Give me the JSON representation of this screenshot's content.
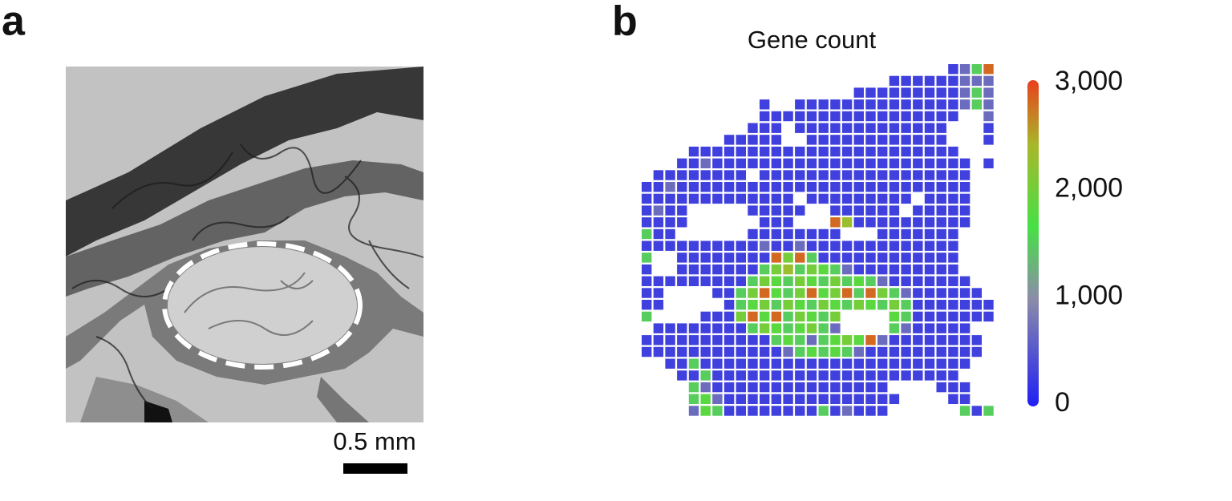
{
  "panel_a": {
    "label": "a",
    "scale_bar": "0.5 mm"
  },
  "chart_data": {
    "type": "spot-heatmap",
    "label": "b",
    "title": "Gene count",
    "clim": [
      0,
      3000
    ],
    "colorbar_ticks": [
      0,
      {
        "value": 1000,
        "label": "1,000"
      },
      {
        "value": 2000,
        "label": "2,000"
      },
      {
        "value": 3000,
        "label": "3,000"
      }
    ],
    "values": [
      [
        null,
        null,
        null,
        null,
        null,
        null,
        null,
        null,
        null,
        null,
        null,
        null,
        null,
        null,
        null,
        null,
        null,
        null,
        null,
        null,
        null,
        null,
        null,
        null,
        null,
        null,
        300,
        700,
        1500,
        2800
      ],
      [
        null,
        null,
        null,
        null,
        null,
        null,
        null,
        null,
        null,
        null,
        null,
        null,
        null,
        null,
        null,
        null,
        null,
        null,
        null,
        null,
        null,
        300,
        300,
        300,
        300,
        300,
        300,
        700,
        700,
        700
      ],
      [
        null,
        null,
        null,
        null,
        null,
        null,
        null,
        null,
        null,
        null,
        null,
        null,
        null,
        null,
        null,
        null,
        null,
        null,
        300,
        300,
        300,
        300,
        300,
        300,
        300,
        300,
        300,
        700,
        1500,
        700
      ],
      [
        null,
        null,
        null,
        null,
        null,
        null,
        null,
        null,
        null,
        null,
        300,
        null,
        null,
        300,
        300,
        300,
        300,
        300,
        300,
        300,
        300,
        300,
        300,
        300,
        300,
        300,
        300,
        700,
        1500,
        700
      ],
      [
        null,
        null,
        null,
        null,
        null,
        null,
        null,
        null,
        null,
        null,
        300,
        300,
        300,
        300,
        300,
        300,
        300,
        300,
        300,
        300,
        300,
        300,
        300,
        300,
        300,
        300,
        300,
        null,
        null,
        700
      ],
      [
        null,
        null,
        null,
        null,
        null,
        null,
        null,
        null,
        null,
        300,
        300,
        300,
        null,
        300,
        300,
        300,
        300,
        300,
        300,
        300,
        300,
        300,
        300,
        300,
        300,
        300,
        null,
        null,
        null,
        300
      ],
      [
        null,
        null,
        null,
        null,
        null,
        null,
        null,
        300,
        300,
        300,
        300,
        300,
        null,
        null,
        300,
        300,
        300,
        300,
        300,
        300,
        300,
        300,
        300,
        300,
        300,
        300,
        null,
        null,
        null,
        300
      ],
      [
        null,
        null,
        null,
        null,
        300,
        300,
        300,
        300,
        300,
        300,
        300,
        300,
        300,
        300,
        300,
        300,
        300,
        300,
        300,
        300,
        300,
        300,
        300,
        300,
        300,
        300,
        300,
        null,
        null,
        null
      ],
      [
        null,
        null,
        null,
        300,
        300,
        700,
        300,
        300,
        300,
        300,
        300,
        300,
        300,
        300,
        300,
        300,
        300,
        300,
        300,
        300,
        300,
        300,
        300,
        300,
        300,
        300,
        300,
        300,
        null,
        300
      ],
      [
        null,
        300,
        300,
        300,
        300,
        300,
        300,
        300,
        300,
        null,
        300,
        300,
        300,
        300,
        300,
        300,
        300,
        300,
        300,
        300,
        300,
        300,
        300,
        300,
        300,
        300,
        300,
        300,
        null,
        null
      ],
      [
        300,
        300,
        700,
        300,
        300,
        300,
        300,
        300,
        300,
        300,
        300,
        300,
        300,
        300,
        300,
        300,
        300,
        300,
        300,
        300,
        300,
        300,
        300,
        300,
        300,
        300,
        300,
        300,
        null,
        null
      ],
      [
        300,
        300,
        300,
        300,
        300,
        300,
        300,
        300,
        300,
        300,
        300,
        300,
        300,
        null,
        300,
        300,
        300,
        300,
        300,
        300,
        300,
        300,
        300,
        null,
        300,
        300,
        300,
        300,
        null,
        null
      ],
      [
        300,
        700,
        300,
        300,
        null,
        null,
        null,
        null,
        null,
        300,
        300,
        300,
        300,
        300,
        null,
        null,
        300,
        300,
        300,
        300,
        300,
        300,
        null,
        300,
        300,
        300,
        300,
        300,
        null,
        null
      ],
      [
        300,
        300,
        300,
        300,
        null,
        null,
        null,
        null,
        null,
        null,
        300,
        300,
        300,
        null,
        null,
        null,
        2800,
        2300,
        300,
        300,
        300,
        300,
        300,
        300,
        300,
        300,
        300,
        300,
        null,
        null
      ],
      [
        1500,
        300,
        300,
        null,
        null,
        null,
        null,
        null,
        null,
        300,
        300,
        300,
        300,
        300,
        300,
        300,
        300,
        null,
        null,
        null,
        300,
        300,
        300,
        300,
        300,
        300,
        300,
        null,
        null,
        null
      ],
      [
        300,
        300,
        300,
        300,
        300,
        300,
        300,
        300,
        300,
        300,
        700,
        300,
        300,
        700,
        300,
        300,
        300,
        300,
        300,
        300,
        300,
        300,
        300,
        300,
        300,
        300,
        300,
        null,
        null,
        null
      ],
      [
        1500,
        null,
        null,
        300,
        300,
        300,
        300,
        300,
        300,
        300,
        300,
        2800,
        2000,
        2800,
        1500,
        300,
        300,
        300,
        300,
        300,
        300,
        300,
        300,
        300,
        300,
        300,
        300,
        null,
        null,
        null
      ],
      [
        300,
        null,
        null,
        300,
        300,
        300,
        300,
        300,
        300,
        300,
        1500,
        2000,
        2300,
        1500,
        2000,
        1800,
        1500,
        700,
        300,
        300,
        300,
        300,
        300,
        300,
        300,
        300,
        300,
        null,
        null,
        null
      ],
      [
        300,
        300,
        300,
        300,
        300,
        300,
        300,
        300,
        300,
        1500,
        2000,
        1800,
        1500,
        2000,
        1800,
        1500,
        2000,
        1500,
        1800,
        1500,
        700,
        300,
        300,
        300,
        300,
        300,
        300,
        300,
        null,
        null
      ],
      [
        300,
        300,
        null,
        null,
        null,
        null,
        300,
        300,
        1500,
        2000,
        2800,
        1800,
        1500,
        2000,
        2800,
        1800,
        2000,
        2800,
        1500,
        2800,
        2000,
        1500,
        700,
        300,
        300,
        300,
        300,
        300,
        300,
        null
      ],
      [
        300,
        300,
        null,
        null,
        null,
        null,
        null,
        300,
        1500,
        1800,
        2000,
        1500,
        2000,
        1800,
        1500,
        2000,
        1800,
        1500,
        2000,
        1800,
        1500,
        2000,
        1500,
        300,
        300,
        300,
        300,
        300,
        300,
        300
      ],
      [
        1500,
        null,
        null,
        null,
        null,
        300,
        300,
        300,
        2000,
        2800,
        1800,
        2800,
        1500,
        2000,
        1800,
        1500,
        2000,
        null,
        null,
        null,
        null,
        1800,
        1500,
        300,
        300,
        300,
        300,
        300,
        300,
        300
      ],
      [
        null,
        300,
        300,
        300,
        300,
        300,
        300,
        300,
        300,
        1500,
        2000,
        1800,
        1500,
        1800,
        2000,
        1500,
        700,
        null,
        null,
        null,
        null,
        1500,
        700,
        300,
        300,
        300,
        300,
        300,
        null,
        null
      ],
      [
        300,
        300,
        300,
        300,
        300,
        300,
        300,
        300,
        300,
        300,
        300,
        1500,
        1800,
        1500,
        700,
        1500,
        1800,
        2000,
        1800,
        2800,
        700,
        300,
        300,
        300,
        300,
        300,
        300,
        300,
        300,
        null
      ],
      [
        300,
        300,
        300,
        300,
        300,
        300,
        300,
        300,
        300,
        300,
        300,
        300,
        700,
        1500,
        1800,
        1500,
        1800,
        1500,
        700,
        300,
        300,
        300,
        300,
        300,
        300,
        300,
        300,
        300,
        300,
        null
      ],
      [
        null,
        null,
        300,
        300,
        1500,
        300,
        300,
        300,
        300,
        300,
        300,
        300,
        300,
        300,
        300,
        300,
        300,
        300,
        300,
        300,
        300,
        300,
        300,
        300,
        300,
        300,
        300,
        300,
        null,
        null
      ],
      [
        null,
        null,
        null,
        300,
        300,
        1500,
        300,
        300,
        300,
        300,
        300,
        300,
        300,
        300,
        300,
        300,
        300,
        300,
        300,
        300,
        300,
        300,
        300,
        300,
        300,
        300,
        300,
        null,
        null,
        null
      ],
      [
        null,
        null,
        null,
        null,
        1500,
        700,
        300,
        300,
        300,
        300,
        300,
        300,
        300,
        300,
        300,
        300,
        300,
        300,
        300,
        300,
        300,
        null,
        null,
        null,
        null,
        300,
        300,
        300,
        null,
        null
      ],
      [
        null,
        null,
        null,
        null,
        1500,
        1800,
        700,
        300,
        300,
        300,
        300,
        300,
        300,
        300,
        300,
        300,
        300,
        300,
        300,
        300,
        300,
        300,
        null,
        null,
        null,
        null,
        300,
        300,
        null,
        null
      ],
      [
        null,
        null,
        null,
        null,
        700,
        1800,
        1500,
        300,
        300,
        300,
        300,
        300,
        300,
        300,
        300,
        1500,
        300,
        700,
        300,
        300,
        300,
        null,
        null,
        null,
        null,
        null,
        null,
        1500,
        300,
        1500
      ]
    ]
  }
}
